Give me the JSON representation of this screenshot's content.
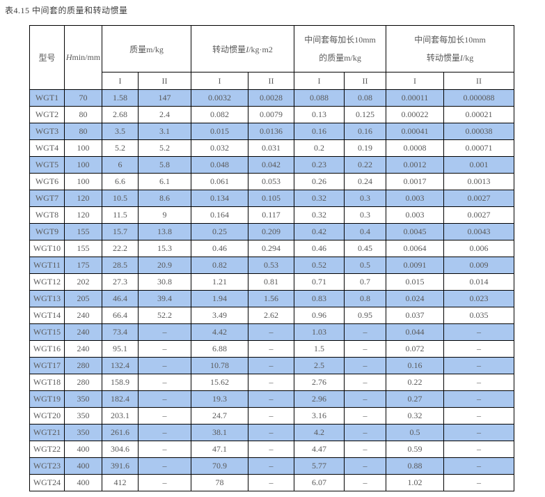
{
  "title": "表4.15 中间套的质量和转动惯量",
  "colors": {
    "highlight_row": "#aac8f0",
    "border": "#000000",
    "text": "#595959",
    "title_text": "#3f3f3f"
  },
  "table": {
    "headers": {
      "model": "型号",
      "hmin_var": "H",
      "hmin_rest": "min/mm",
      "mass": "质量m/kg",
      "inertia_prefix": "转动惯量",
      "inertia_var": "I",
      "inertia_unit": "/kg·m2",
      "ext_l1": "中间套每加长10mm",
      "ext_mass_l2": "的质量m/kg",
      "ext_inertia_prefix": "转动惯量",
      "ext_inertia_var": "I",
      "ext_inertia_unit": "/kg",
      "sub_i": "I",
      "sub_ii": "II"
    },
    "rows": [
      [
        "WGT1",
        "70",
        "1.58",
        "147",
        "0.0032",
        "0.0028",
        "0.088",
        "0.08",
        "0.00011",
        "0.000088"
      ],
      [
        "WGT2",
        "80",
        "2.68",
        "2.4",
        "0.082",
        "0.0079",
        "0.13",
        "0.125",
        "0.00022",
        "0.00021"
      ],
      [
        "WGT3",
        "80",
        "3.5",
        "3.1",
        "0.015",
        "0.0136",
        "0.16",
        "0.16",
        "0.00041",
        "0.00038"
      ],
      [
        "WGT4",
        "100",
        "5.2",
        "5.2",
        "0.032",
        "0.031",
        "0.2",
        "0.19",
        "0.0008",
        "0.00071"
      ],
      [
        "WGT5",
        "100",
        "6",
        "5.8",
        "0.048",
        "0.042",
        "0.23",
        "0.22",
        "0.0012",
        "0.001"
      ],
      [
        "WGT6",
        "100",
        "6.6",
        "6.1",
        "0.061",
        "0.053",
        "0.26",
        "0.24",
        "0.0017",
        "0.0013"
      ],
      [
        "WGT7",
        "120",
        "10.5",
        "8.6",
        "0.134",
        "0.105",
        "0.32",
        "0.3",
        "0.003",
        "0.0027"
      ],
      [
        "WGT8",
        "120",
        "11.5",
        "9",
        "0.164",
        "0.117",
        "0.32",
        "0.3",
        "0.003",
        "0.0027"
      ],
      [
        "WGT9",
        "155",
        "15.7",
        "13.8",
        "0.25",
        "0.209",
        "0.42",
        "0.4",
        "0.0045",
        "0.0043"
      ],
      [
        "WGT10",
        "155",
        "22.2",
        "15.3",
        "0.46",
        "0.294",
        "0.46",
        "0.45",
        "0.0064",
        "0.006"
      ],
      [
        "WGT11",
        "175",
        "28.5",
        "20.9",
        "0.82",
        "0.53",
        "0.52",
        "0.5",
        "0.0091",
        "0.009"
      ],
      [
        "WGT12",
        "202",
        "27.3",
        "30.8",
        "1.21",
        "0.81",
        "0.71",
        "0.7",
        "0.015",
        "0.014"
      ],
      [
        "WGT13",
        "205",
        "46.4",
        "39.4",
        "1.94",
        "1.56",
        "0.83",
        "0.8",
        "0.024",
        "0.023"
      ],
      [
        "WGT14",
        "240",
        "66.4",
        "52.2",
        "3.49",
        "2.62",
        "0.96",
        "0.95",
        "0.037",
        "0.035"
      ],
      [
        "WGT15",
        "240",
        "73.4",
        "–",
        "4.42",
        "–",
        "1.03",
        "–",
        "0.044",
        "–"
      ],
      [
        "WGT16",
        "240",
        "95.1",
        "–",
        "6.88",
        "–",
        "1.5",
        "–",
        "0.072",
        "–"
      ],
      [
        "WGT17",
        "280",
        "132.4",
        "–",
        "10.78",
        "–",
        "2.5",
        "–",
        "0.16",
        "–"
      ],
      [
        "WGT18",
        "280",
        "158.9",
        "–",
        "15.62",
        "–",
        "2.76",
        "–",
        "0.22",
        "–"
      ],
      [
        "WGT19",
        "350",
        "182.4",
        "–",
        "19.3",
        "–",
        "2.96",
        "–",
        "0.27",
        "–"
      ],
      [
        "WGT20",
        "350",
        "203.1",
        "–",
        "24.7",
        "–",
        "3.16",
        "–",
        "0.32",
        "–"
      ],
      [
        "WGT21",
        "350",
        "261.6",
        "–",
        "38.1",
        "–",
        "4.2",
        "–",
        "0.5",
        "–"
      ],
      [
        "WGT22",
        "400",
        "304.6",
        "–",
        "47.1",
        "–",
        "4.47",
        "–",
        "0.59",
        "–"
      ],
      [
        "WGT23",
        "400",
        "391.6",
        "–",
        "70.9",
        "–",
        "5.77",
        "–",
        "0.88",
        "–"
      ],
      [
        "WGT24",
        "400",
        "412",
        "–",
        "78",
        "–",
        "6.07",
        "–",
        "1.02",
        "–"
      ]
    ]
  }
}
